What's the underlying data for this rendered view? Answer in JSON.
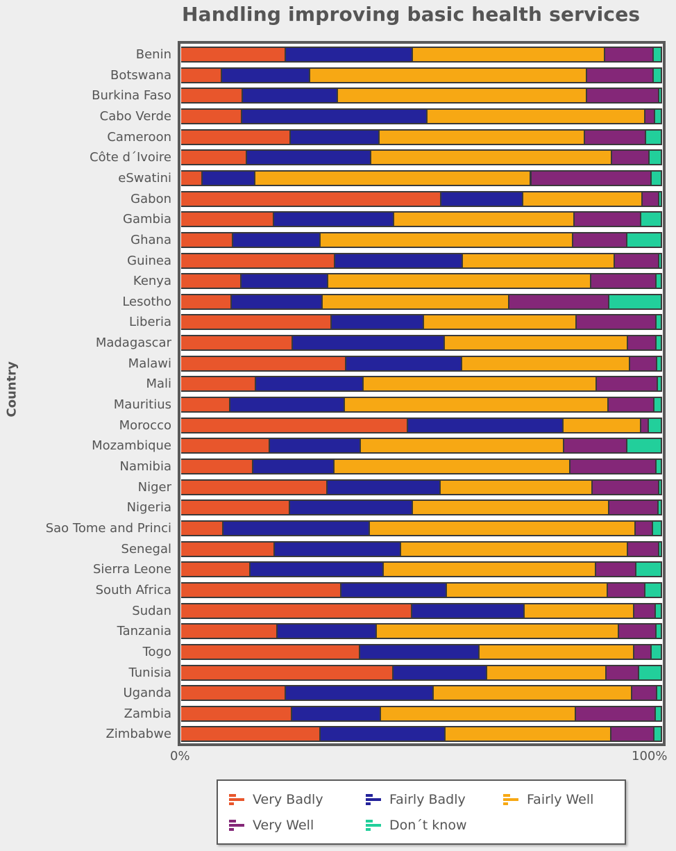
{
  "chart_data": {
    "type": "bar",
    "orientation": "horizontal",
    "stacked": "percent",
    "title": "Handling improving basic health services",
    "xlabel": "",
    "ylabel": "Country",
    "xlim": [
      0,
      100
    ],
    "x_ticks": [
      "0%",
      "100%"
    ],
    "grid": false,
    "legend_position": "bottom",
    "categories": [
      "Benin",
      "Botswana",
      "Burkina Faso",
      "Cabo Verde",
      "Cameroon",
      "Côte d´Ivoire",
      "eSwatini",
      "Gabon",
      "Gambia",
      "Ghana",
      "Guinea",
      "Kenya",
      "Lesotho",
      "Liberia",
      "Madagascar",
      "Malawi",
      "Mali",
      "Mauritius",
      "Morocco",
      "Mozambique",
      "Namibia",
      "Niger",
      "Nigeria",
      "Sao Tome and Princi",
      "Senegal",
      "Sierra Leone",
      "South Africa",
      "Sudan",
      "Tanzania",
      "Togo",
      "Tunisia",
      "Uganda",
      "Zambia",
      "Zimbabwe"
    ],
    "series": [
      {
        "name": "Very Badly",
        "color": "#e8562c",
        "values": [
          21.8,
          8.5,
          12.8,
          12.7,
          22.8,
          13.7,
          4.5,
          54.1,
          19.3,
          10.8,
          32.0,
          12.6,
          10.6,
          31.3,
          23.2,
          34.4,
          15.6,
          10.3,
          47.2,
          18.5,
          15.0,
          30.4,
          22.6,
          8.8,
          19.5,
          14.4,
          33.3,
          48.1,
          20.1,
          37.2,
          44.2,
          21.8,
          23.1,
          29.0
        ]
      },
      {
        "name": "Fairly Badly",
        "color": "#24239b",
        "values": [
          26.4,
          18.3,
          19.8,
          38.5,
          18.5,
          25.8,
          11.0,
          17.0,
          25.0,
          18.2,
          26.6,
          18.0,
          18.9,
          19.2,
          31.6,
          24.1,
          22.4,
          23.8,
          32.3,
          18.9,
          16.9,
          23.5,
          25.6,
          30.4,
          26.2,
          27.8,
          22.0,
          23.3,
          20.6,
          24.8,
          19.5,
          30.7,
          18.5,
          26.0
        ]
      },
      {
        "name": "Fairly Well",
        "color": "#f7a814",
        "values": [
          40.0,
          57.6,
          51.8,
          45.3,
          42.7,
          50.1,
          57.3,
          24.8,
          37.5,
          52.5,
          31.6,
          54.7,
          38.7,
          31.8,
          38.1,
          34.8,
          48.5,
          54.8,
          16.2,
          42.2,
          49.1,
          31.7,
          40.9,
          55.3,
          47.3,
          44.1,
          33.5,
          22.8,
          50.4,
          32.3,
          24.8,
          41.3,
          40.5,
          34.4
        ]
      },
      {
        "name": "Very Well",
        "color": "#842778",
        "values": [
          10.1,
          13.9,
          15.0,
          2.0,
          12.7,
          7.8,
          25.0,
          3.5,
          13.9,
          11.3,
          9.2,
          13.6,
          20.9,
          16.6,
          5.9,
          5.7,
          12.7,
          9.5,
          1.6,
          13.2,
          17.9,
          13.8,
          10.2,
          3.6,
          6.4,
          8.4,
          7.8,
          4.5,
          7.8,
          3.6,
          6.8,
          5.2,
          16.6,
          9.0
        ]
      },
      {
        "name": "Don´t know",
        "color": "#22cf9b",
        "values": [
          1.7,
          1.7,
          0.6,
          1.5,
          3.3,
          2.6,
          2.2,
          0.6,
          4.3,
          7.2,
          0.6,
          1.1,
          10.9,
          1.1,
          1.2,
          1.0,
          0.8,
          1.6,
          2.7,
          7.2,
          1.1,
          0.6,
          0.7,
          1.9,
          0.6,
          5.3,
          3.4,
          1.3,
          1.1,
          2.1,
          4.7,
          1.0,
          1.3,
          1.6
        ]
      }
    ]
  },
  "legend": {
    "items": [
      "Very Badly",
      "Fairly Badly",
      "Fairly Well",
      "Very Well",
      "Don´t know"
    ]
  }
}
